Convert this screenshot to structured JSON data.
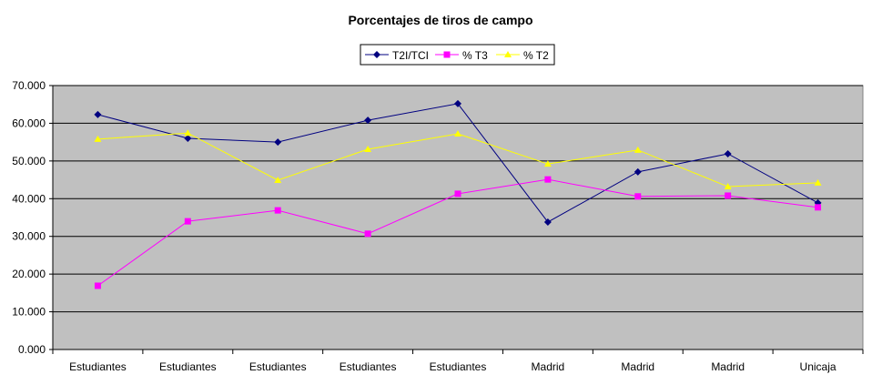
{
  "chart_data": {
    "type": "line",
    "title": "Porcentajes de tiros de campo",
    "xlabel": "",
    "ylabel": "",
    "categories": [
      "Estudiantes",
      "Estudiantes",
      "Estudiantes",
      "Estudiantes",
      "Estudiantes",
      "Madrid",
      "Madrid",
      "Madrid",
      "Unicaja"
    ],
    "ylim": [
      0,
      70
    ],
    "yticks": [
      0,
      10,
      20,
      30,
      40,
      50,
      60,
      70
    ],
    "ytick_labels": [
      "0.000",
      "10.000",
      "20.000",
      "30.000",
      "40.000",
      "50.000",
      "60.000",
      "70.000"
    ],
    "grid": true,
    "legend_position": "top-center",
    "series": [
      {
        "name": "T2I/TCI",
        "color": "#000080",
        "marker": "diamond",
        "values": [
          62.3,
          56.0,
          55.0,
          60.8,
          65.2,
          33.8,
          47.1,
          51.9,
          38.9
        ]
      },
      {
        "name": "% T3",
        "color": "#FF00FF",
        "marker": "square",
        "values": [
          16.9,
          34.0,
          36.9,
          30.7,
          41.3,
          45.1,
          40.6,
          40.8,
          37.7
        ]
      },
      {
        "name": "% T2",
        "color": "#FFFF00",
        "marker": "triangle",
        "values": [
          55.8,
          57.4,
          44.9,
          53.1,
          57.2,
          49.2,
          52.9,
          43.2,
          44.2
        ]
      }
    ],
    "plot_background": "#C0C0C0"
  }
}
